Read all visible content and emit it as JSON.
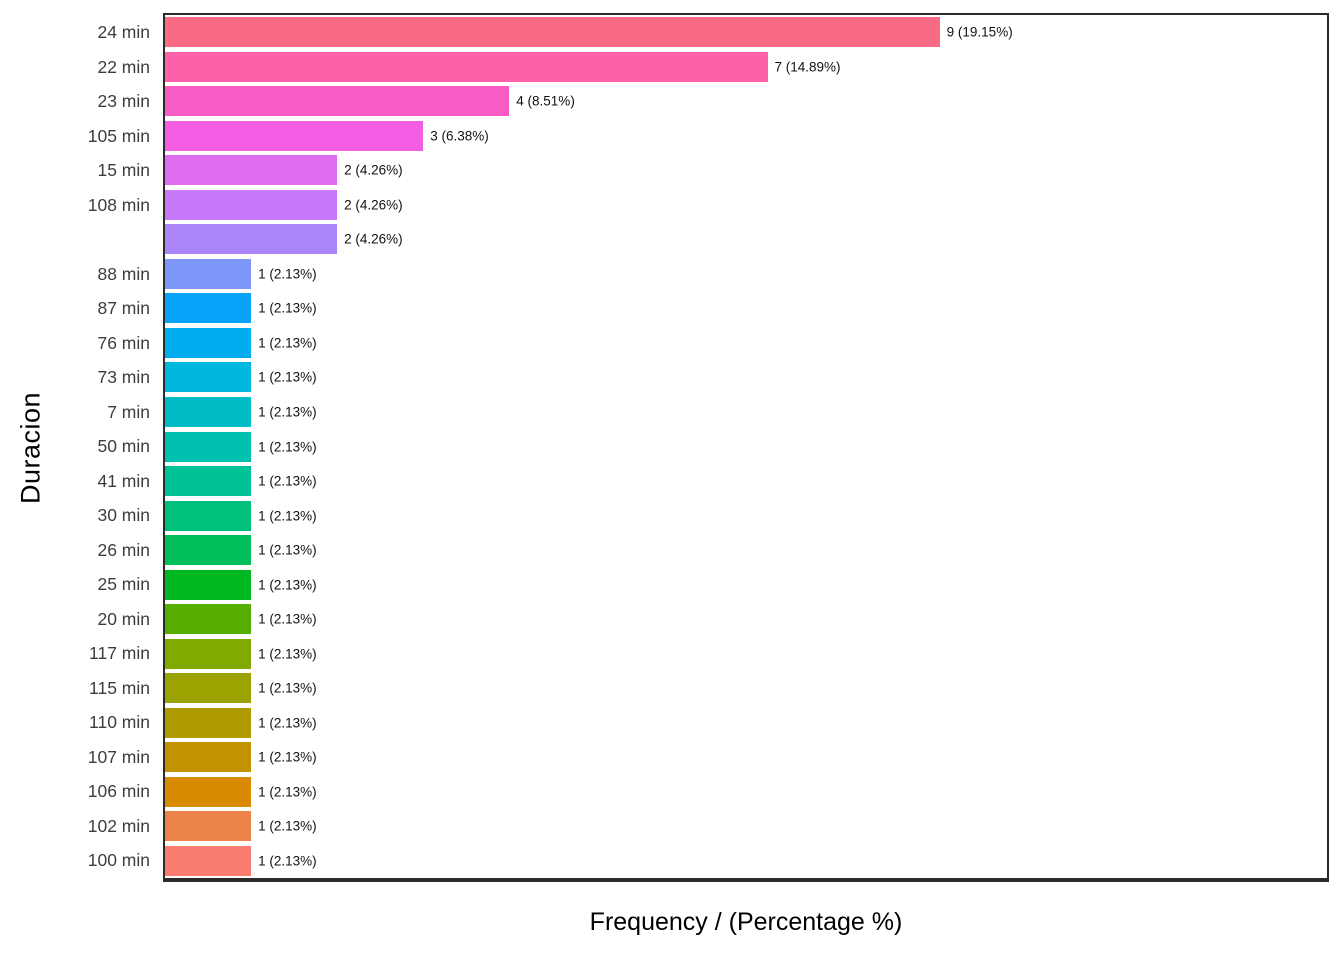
{
  "chart_data": {
    "type": "bar",
    "orientation": "horizontal",
    "title": "",
    "xlabel": "Frequency / (Percentage %)",
    "ylabel": "Duracion",
    "xlim": [
      0,
      13.5
    ],
    "grid": false,
    "legend": "none",
    "x_axis_tick_labels": "none",
    "categories": [
      "24 min",
      "22 min",
      "23 min",
      "105 min",
      "15 min",
      "108 min",
      "",
      "88 min",
      "87 min",
      "76 min",
      "73 min",
      "7 min",
      "50 min",
      "41 min",
      "30 min",
      "26 min",
      "25 min",
      "20 min",
      "117 min",
      "115 min",
      "110 min",
      "107 min",
      "106 min",
      "102 min",
      "100 min"
    ],
    "values": [
      9,
      7,
      4,
      3,
      2,
      2,
      2,
      1,
      1,
      1,
      1,
      1,
      1,
      1,
      1,
      1,
      1,
      1,
      1,
      1,
      1,
      1,
      1,
      1,
      1
    ],
    "percentages": [
      19.15,
      14.89,
      8.51,
      6.38,
      4.26,
      4.26,
      4.26,
      2.13,
      2.13,
      2.13,
      2.13,
      2.13,
      2.13,
      2.13,
      2.13,
      2.13,
      2.13,
      2.13,
      2.13,
      2.13,
      2.13,
      2.13,
      2.13,
      2.13,
      2.13
    ],
    "bar_labels": [
      "9 (19.15%)",
      "7 (14.89%)",
      "4 (8.51%)",
      "3 (6.38%)",
      "2 (4.26%)",
      "2 (4.26%)",
      "2 (4.26%)",
      "1 (2.13%)",
      "1 (2.13%)",
      "1 (2.13%)",
      "1 (2.13%)",
      "1 (2.13%)",
      "1 (2.13%)",
      "1 (2.13%)",
      "1 (2.13%)",
      "1 (2.13%)",
      "1 (2.13%)",
      "1 (2.13%)",
      "1 (2.13%)",
      "1 (2.13%)",
      "1 (2.13%)",
      "1 (2.13%)",
      "1 (2.13%)",
      "1 (2.13%)",
      "1 (2.13%)"
    ],
    "bar_colors": [
      "#fb6a85",
      "#fc62a7",
      "#fa5cc5",
      "#f25de4",
      "#df6bf2",
      "#c778fa",
      "#aa85fa",
      "#7d96f8",
      "#06a3f9",
      "#00aeef",
      "#00b7dd",
      "#00bcc6",
      "#00c0b0",
      "#00c297",
      "#00c17c",
      "#00be5c",
      "#00b822",
      "#55ae00",
      "#80aa00",
      "#9ba300",
      "#af9a00",
      "#c29200",
      "#d88a00",
      "#ec8449",
      "#f87c70"
    ],
    "colors": {
      "plot_border": "#2b2b2b",
      "tick_label_text": "#3d3d3d",
      "value_label_text": "#111111",
      "axis_title_text": "#000000",
      "background": "#ffffff"
    }
  }
}
